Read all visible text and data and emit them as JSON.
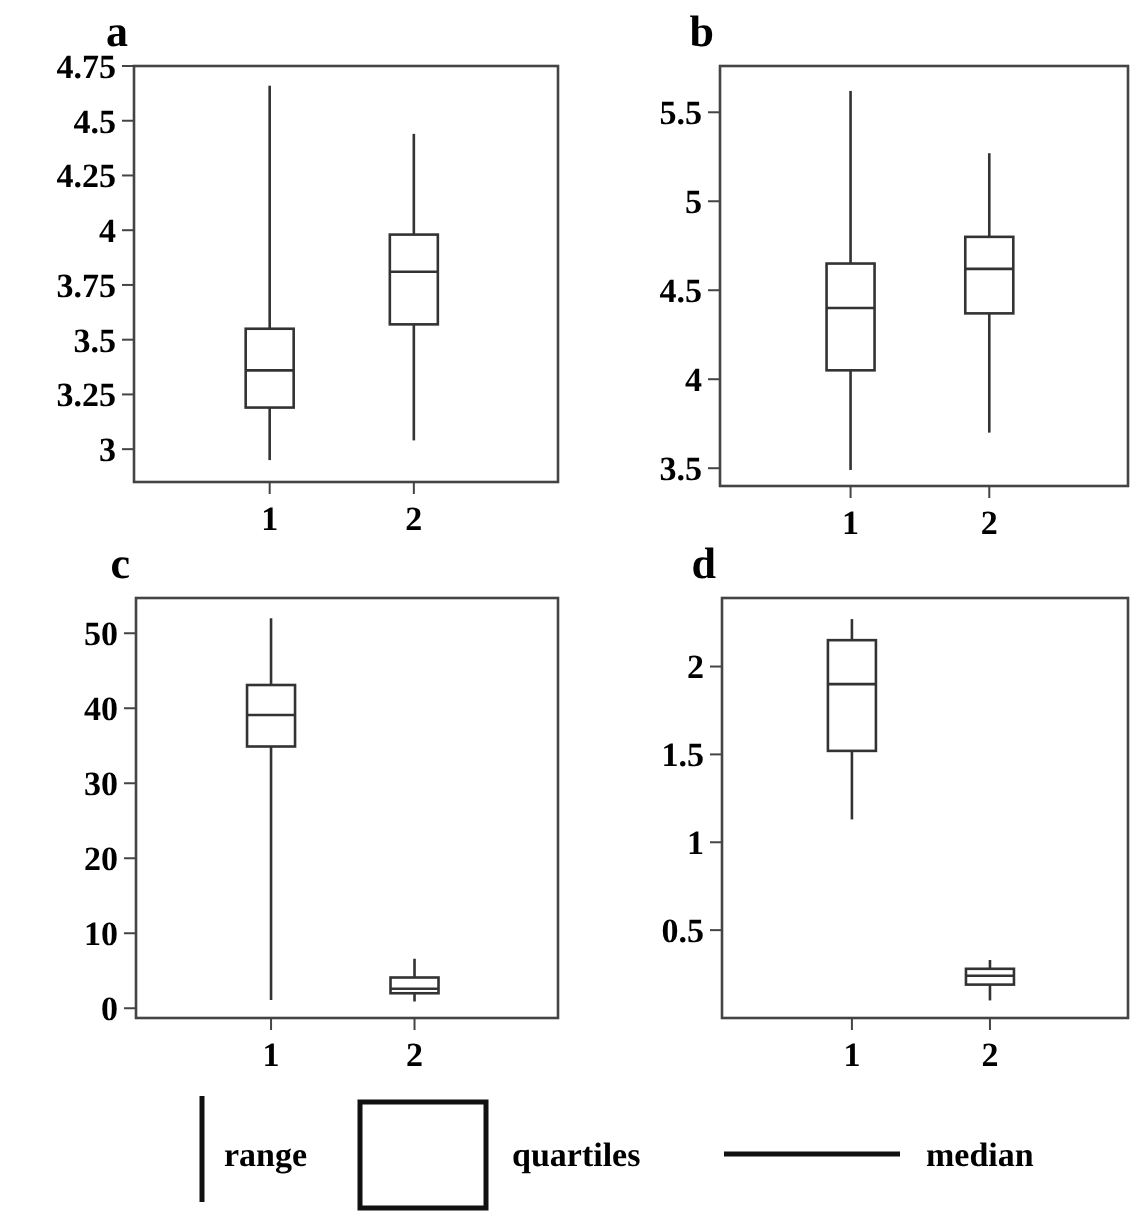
{
  "chart_data": [
    {
      "type": "box",
      "title": "a",
      "categories": [
        "1",
        "2"
      ],
      "ylim": [
        2.85,
        4.75
      ],
      "yticks": [
        3,
        3.25,
        3.5,
        3.75,
        4,
        4.25,
        4.5,
        4.75
      ],
      "grid": false,
      "boxes": [
        {
          "low": 2.95,
          "q1": 3.19,
          "median": 3.36,
          "q3": 3.55,
          "high": 4.66
        },
        {
          "low": 3.04,
          "q1": 3.57,
          "median": 3.81,
          "q3": 3.98,
          "high": 4.44
        }
      ]
    },
    {
      "type": "box",
      "title": "b",
      "categories": [
        "1",
        "2"
      ],
      "ylim": [
        3.4,
        5.76
      ],
      "yticks": [
        3.5,
        4,
        4.5,
        5,
        5.5
      ],
      "grid": false,
      "boxes": [
        {
          "low": 3.49,
          "q1": 4.05,
          "median": 4.4,
          "q3": 4.65,
          "high": 5.62
        },
        {
          "low": 3.7,
          "q1": 4.37,
          "median": 4.62,
          "q3": 4.8,
          "high": 5.27
        }
      ]
    },
    {
      "type": "box",
      "title": "c",
      "categories": [
        "1",
        "2"
      ],
      "ylim": [
        -1.3,
        54.7
      ],
      "yticks": [
        0,
        10,
        20,
        30,
        40,
        50
      ],
      "grid": false,
      "boxes": [
        {
          "low": 1.1,
          "q1": 34.9,
          "median": 39.1,
          "q3": 43.1,
          "high": 52
        },
        {
          "low": 0.9,
          "q1": 2,
          "median": 2.6,
          "q3": 4.1,
          "high": 6.6
        }
      ]
    },
    {
      "type": "box",
      "title": "d",
      "categories": [
        "1",
        "2"
      ],
      "ylim": [
        0,
        2.39
      ],
      "yticks": [
        0.5,
        1,
        1.5,
        2
      ],
      "grid": false,
      "boxes": [
        {
          "low": 1.13,
          "q1": 1.52,
          "median": 1.9,
          "q3": 2.15,
          "high": 2.27
        },
        {
          "low": 0.1,
          "q1": 0.19,
          "median": 0.24,
          "q3": 0.28,
          "high": 0.33
        }
      ],
      "annotations": [
        "range",
        "quartiles",
        "median"
      ]
    }
  ]
}
